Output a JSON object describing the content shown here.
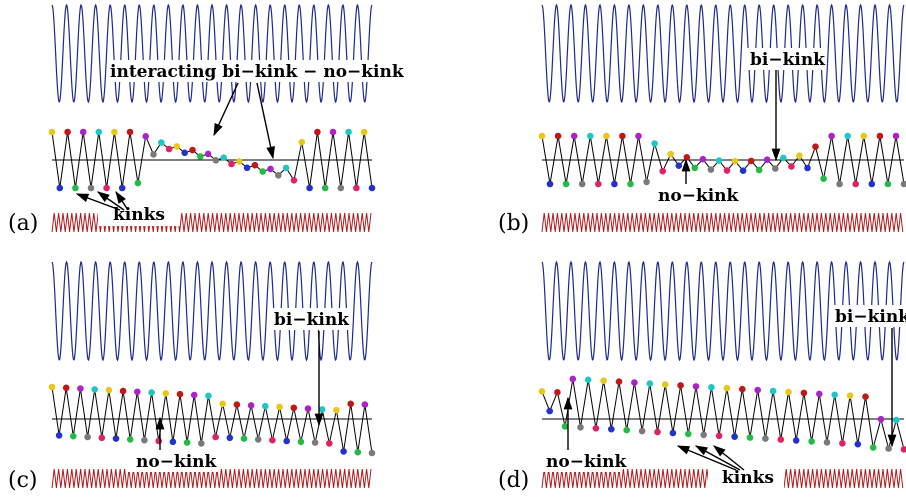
{
  "panels": [
    {
      "label": "(a)",
      "annotations": [
        "interacting bi−kink − no−kink",
        "kinks"
      ]
    },
    {
      "label": "(b)",
      "annotations": [
        "bi−kink",
        "no−kink"
      ]
    },
    {
      "label": "(c)",
      "annotations": [
        "bi−kink",
        "no−kink"
      ]
    },
    {
      "label": "(d)",
      "annotations": [
        "bi−kink",
        "no−kink",
        "kinks"
      ]
    }
  ],
  "colors": {
    "wave": "#1c2a8c",
    "substrate": "#b01818",
    "chain": "#000000",
    "beads": [
      "#e6c81a",
      "#22bb44",
      "#1fc6c6",
      "#2233cc",
      "#aa22cc",
      "#dd2266",
      "#c01818",
      "#7a7a7a"
    ]
  }
}
